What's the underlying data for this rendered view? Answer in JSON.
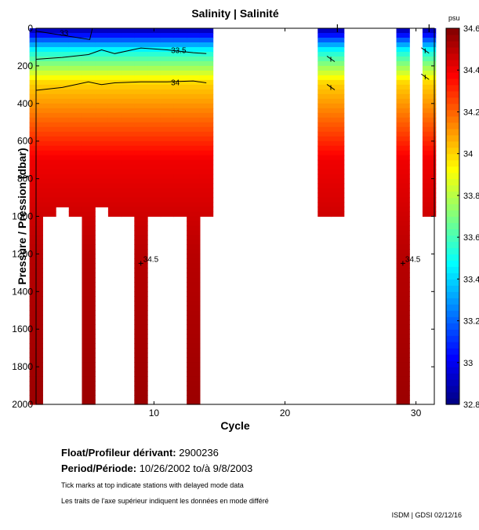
{
  "chart_data": {
    "type": "heatmap",
    "title": "Salinity | Salinité",
    "xlabel": "Cycle",
    "ylabel": "Pressure / Pression (dbar)",
    "x_range": [
      1,
      31.4
    ],
    "y_range": [
      0,
      2000
    ],
    "y_reversed": true,
    "x_ticks": [
      10,
      20,
      30
    ],
    "y_ticks": [
      0,
      200,
      400,
      600,
      800,
      1000,
      1200,
      1400,
      1600,
      1800,
      2000
    ],
    "colorbar": {
      "unit": "psu",
      "range": [
        32.8,
        34.6
      ],
      "ticks": [
        32.8,
        33,
        33.2,
        33.4,
        33.6,
        33.8,
        34,
        34.2,
        34.4,
        34.6
      ],
      "tick_labels": [
        "32.8",
        "33",
        "33.2",
        "33.4",
        "33.6",
        "33.8",
        "34",
        "34.2",
        "34.4",
        "34.6"
      ]
    },
    "profile_cycles": [
      1,
      2,
      3,
      4,
      5,
      6,
      7,
      8,
      9,
      10,
      11,
      12,
      13,
      14,
      23,
      24,
      29,
      31
    ],
    "profile_depths": [
      2000,
      1000,
      950,
      1000,
      2000,
      950,
      1000,
      1000,
      2000,
      1000,
      1000,
      1000,
      2000,
      1000,
      1000,
      1000,
      2000,
      1000
    ],
    "contours": [
      {
        "level": 33.5,
        "label": "33.5",
        "cycles": [
          1,
          3,
          5,
          6,
          7,
          9,
          11,
          13,
          14
        ],
        "pressures": [
          165,
          155,
          140,
          115,
          135,
          105,
          115,
          130,
          135
        ]
      },
      {
        "level": 34,
        "label": "34",
        "cycles": [
          1,
          3,
          5,
          6,
          7,
          9,
          11,
          13,
          14
        ],
        "pressures": [
          330,
          315,
          285,
          300,
          290,
          285,
          285,
          280,
          290
        ]
      },
      {
        "level": 34.5,
        "label": "34.5",
        "cycles": [
          9,
          29
        ],
        "pressures": [
          1250,
          1250
        ]
      }
    ],
    "top_contour_label": "33",
    "delayed_mode_ticks": [
      24,
      31
    ]
  },
  "float_label": "Float/Profileur dérivant:",
  "float_id": "2900236",
  "period_label": "Period/Période:",
  "period_value": "10/26/2002  to/à  9/8/2003",
  "note_en": "Tick marks at top indicate stations with delayed mode data",
  "note_fr": "Les traits de l'axe supérieur indiquent les données en mode différé",
  "credit": "ISDM | GDSI  02/12/16"
}
